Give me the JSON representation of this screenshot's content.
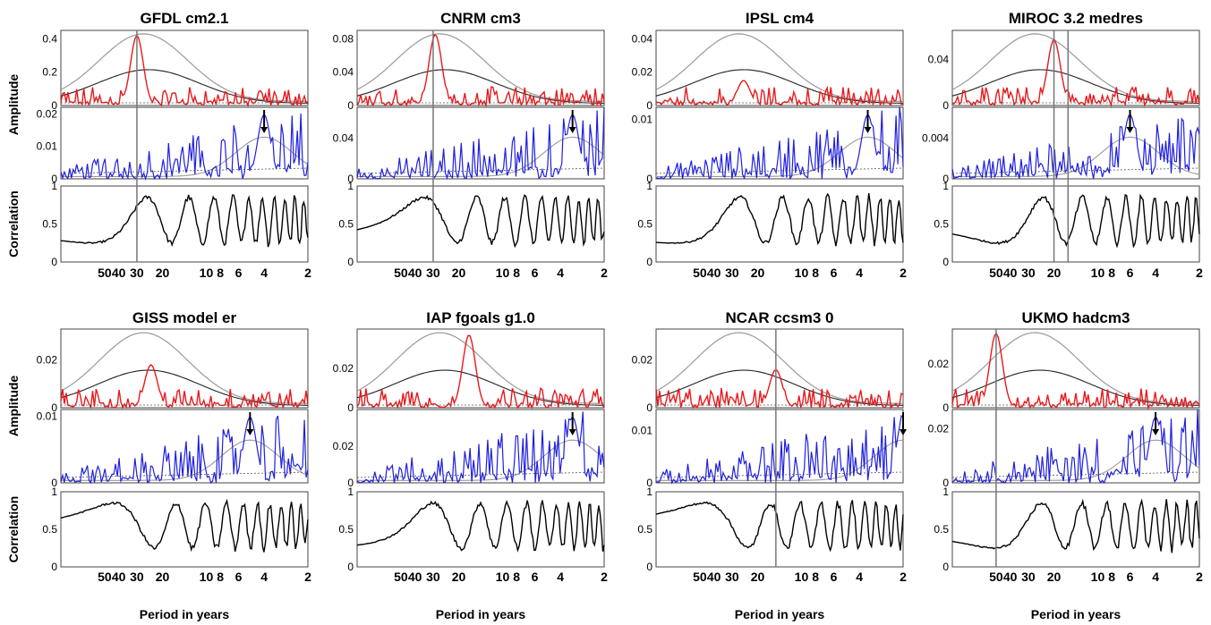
{
  "figure": {
    "row_labels": [
      "Amplitude",
      "Amplitude",
      "Correlation",
      "Amplitude",
      "Amplitude",
      "Correlation"
    ],
    "xlabel": "Period in years",
    "period_ticks": [
      "50",
      "40",
      "30",
      "20",
      "10",
      "8",
      "6",
      "4",
      "2"
    ],
    "colors": {
      "red_amplitude": "#e8191c",
      "blue_amplitude": "#1f1fe0",
      "correlation": "#000000",
      "envelope_gray": "#9a9a9a",
      "envelope_black": "#222222",
      "marker_line": "#777777"
    }
  },
  "chart_data": [
    {
      "title": "GFDL cm2.1",
      "type": "line",
      "top": {
        "yticks": [
          "0",
          "0.2",
          "0.4"
        ],
        "ymax": 0.45,
        "peak_period": 30,
        "peak": 0.42
      },
      "middle": {
        "yticks": [
          "0",
          "0.01",
          "0.02"
        ],
        "ymax": 0.022,
        "arrow_period": 4
      },
      "bottom": {
        "yticks": [
          "0",
          "0.5",
          "1"
        ],
        "ymax": 1
      },
      "markers": [
        30
      ]
    },
    {
      "title": "CNRM cm3",
      "type": "line",
      "top": {
        "yticks": [
          "0",
          "0.04",
          "0.08"
        ],
        "ymax": 0.09,
        "peak_period": 29,
        "peak": 0.085
      },
      "middle": {
        "yticks": [
          "0",
          "0.04"
        ],
        "ymax": 0.07,
        "arrow_period": 3.3
      },
      "bottom": {
        "yticks": [
          "0",
          "0.5",
          "1"
        ],
        "ymax": 1
      },
      "markers": [
        30
      ]
    },
    {
      "title": "IPSL cm4",
      "type": "line",
      "top": {
        "yticks": [
          "0",
          "0.02",
          "0.04"
        ],
        "ymax": 0.045,
        "peak_period": 25,
        "peak": 0.015
      },
      "middle": {
        "yticks": [
          "0",
          "0.01"
        ],
        "ymax": 0.012,
        "arrow_period": 3.5
      },
      "bottom": {
        "yticks": [
          "0",
          "0.5",
          "1"
        ],
        "ymax": 1
      },
      "markers": []
    },
    {
      "title": "MIROC 3.2 medres",
      "type": "line",
      "top": {
        "yticks": [
          "0",
          "0.04"
        ],
        "ymax": 0.065,
        "peak_period": 20,
        "peak": 0.057
      },
      "middle": {
        "yticks": [
          "0",
          "0.004"
        ],
        "ymax": 0.007,
        "arrow_period": 6
      },
      "bottom": {
        "yticks": [
          "0",
          "0.5",
          "1"
        ],
        "ymax": 1
      },
      "markers": [
        20,
        16
      ]
    },
    {
      "title": "GISS model er",
      "type": "line",
      "top": {
        "yticks": [
          "0",
          "0.02"
        ],
        "ymax": 0.033,
        "peak_period": 24,
        "peak": 0.018
      },
      "middle": {
        "yticks": [
          "0",
          "0.01"
        ],
        "ymax": 0.011,
        "arrow_period": 5
      },
      "bottom": {
        "yticks": [
          "0",
          "0.5",
          "1"
        ],
        "ymax": 1
      },
      "markers": []
    },
    {
      "title": "IAP fgoals g1.0",
      "type": "line",
      "top": {
        "yticks": [
          "0",
          "0.02"
        ],
        "ymax": 0.04,
        "peak_period": 17,
        "peak": 0.037
      },
      "middle": {
        "yticks": [
          "0",
          "0.02"
        ],
        "ymax": 0.04,
        "arrow_period": 3.3
      },
      "bottom": {
        "yticks": [
          "0",
          "0.5",
          "1"
        ],
        "ymax": 1
      },
      "markers": []
    },
    {
      "title": "NCAR ccsm3 0",
      "type": "line",
      "top": {
        "yticks": [
          "0",
          "0.02"
        ],
        "ymax": 0.033,
        "peak_period": 15,
        "peak": 0.016
      },
      "middle": {
        "yticks": [
          "0",
          "0.01"
        ],
        "ymax": 0.014,
        "arrow_period": 2
      },
      "bottom": {
        "yticks": [
          "0",
          "0.5",
          "1"
        ],
        "ymax": 1
      },
      "markers": [
        15
      ]
    },
    {
      "title": "UKMO hadcm3",
      "type": "line",
      "top": {
        "yticks": [
          "0",
          "0.02"
        ],
        "ymax": 0.036,
        "peak_period": 50,
        "peak": 0.034
      },
      "middle": {
        "yticks": [
          "0",
          "0.02"
        ],
        "ymax": 0.027,
        "arrow_period": 4
      },
      "bottom": {
        "yticks": [
          "0",
          "0.5",
          "1"
        ],
        "ymax": 1
      },
      "markers": [
        50
      ]
    }
  ]
}
